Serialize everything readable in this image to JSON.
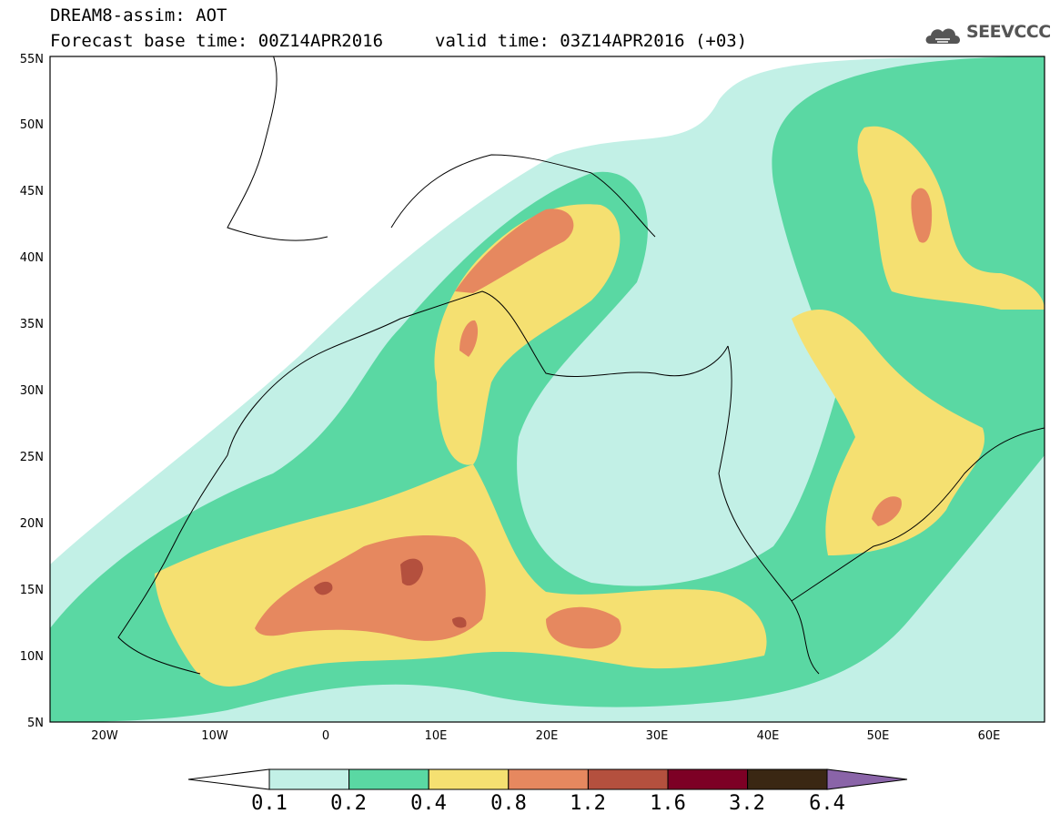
{
  "header": {
    "title_line1": "DREAM8-assim: AOT",
    "title_line2": "Forecast base time: 00Z14APR2016",
    "valid_time": "valid time: 03Z14APR2016 (+03)",
    "logo_text": "SEEVCCC",
    "logo_icon": "cloud-icon"
  },
  "axes": {
    "lat_labels": [
      "55N",
      "50N",
      "45N",
      "40N",
      "35N",
      "30N",
      "25N",
      "20N",
      "15N",
      "10N",
      "5N"
    ],
    "lon_labels": [
      "20W",
      "10W",
      "0",
      "10E",
      "20E",
      "30E",
      "40E",
      "50E",
      "60E"
    ]
  },
  "colorbar": {
    "labels": [
      "0.1",
      "0.2",
      "0.4",
      "0.8",
      "1.2",
      "1.6",
      "3.2",
      "6.4"
    ],
    "colors": [
      "#ffffff",
      "#c2f0e6",
      "#5ad8a3",
      "#f5e071",
      "#e6885f",
      "#b4503e",
      "#7d0025",
      "#3a2713",
      "#8a64a8"
    ]
  },
  "colors": {
    "aot_0_1": "#c2f0e6",
    "aot_0_2": "#5ad8a3",
    "aot_0_4": "#f5e071",
    "aot_0_8": "#e6885f",
    "aot_1_2": "#b4503e"
  }
}
